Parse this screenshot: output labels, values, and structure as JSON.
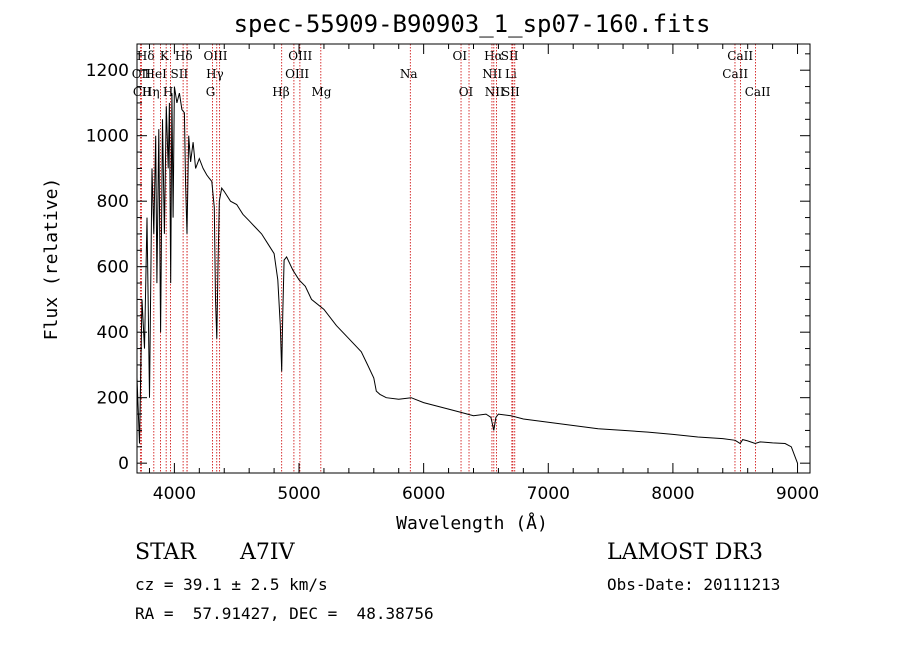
{
  "chart_data": {
    "type": "line",
    "title": "spec-55909-B90903_1_sp07-160.fits",
    "xlabel": "Wavelength (Å)",
    "ylabel": "Flux (relative)",
    "xlim": [
      3700,
      9100
    ],
    "ylim": [
      -30,
      1280
    ],
    "x_ticks": [
      4000,
      5000,
      6000,
      7000,
      8000,
      9000
    ],
    "y_ticks": [
      0,
      200,
      400,
      600,
      800,
      1000,
      1200
    ],
    "grid": false,
    "series": [
      {
        "name": "spectrum",
        "x": [
          3700,
          3720,
          3740,
          3760,
          3780,
          3800,
          3820,
          3835,
          3850,
          3860,
          3875,
          3889,
          3905,
          3920,
          3935,
          3950,
          3960,
          3970,
          3980,
          3990,
          4000,
          4020,
          4040,
          4060,
          4080,
          4090,
          4101,
          4115,
          4130,
          4150,
          4170,
          4200,
          4230,
          4260,
          4280,
          4300,
          4320,
          4330,
          4340,
          4350,
          4360,
          4380,
          4400,
          4450,
          4500,
          4550,
          4600,
          4650,
          4700,
          4750,
          4800,
          4830,
          4850,
          4861,
          4870,
          4880,
          4900,
          4950,
          5000,
          5050,
          5100,
          5200,
          5300,
          5400,
          5500,
          5550,
          5600,
          5620,
          5650,
          5700,
          5800,
          5900,
          6000,
          6100,
          6200,
          6300,
          6400,
          6500,
          6540,
          6563,
          6580,
          6600,
          6700,
          6800,
          7000,
          7200,
          7400,
          7600,
          7800,
          8000,
          8200,
          8400,
          8500,
          8540,
          8560,
          8600,
          8660,
          8700,
          8800,
          8900,
          8950,
          9000
        ],
        "y": [
          260,
          60,
          500,
          350,
          750,
          200,
          900,
          700,
          1000,
          550,
          1020,
          400,
          1050,
          700,
          1090,
          900,
          1100,
          550,
          1130,
          750,
          1150,
          1100,
          1130,
          1080,
          1070,
          850,
          700,
          1000,
          920,
          980,
          900,
          930,
          900,
          880,
          870,
          860,
          780,
          500,
          380,
          600,
          800,
          840,
          830,
          800,
          790,
          760,
          740,
          720,
          700,
          670,
          640,
          560,
          420,
          280,
          460,
          620,
          630,
          590,
          560,
          540,
          500,
          470,
          420,
          380,
          340,
          300,
          260,
          220,
          210,
          200,
          195,
          200,
          185,
          175,
          165,
          155,
          145,
          150,
          140,
          100,
          140,
          150,
          145,
          135,
          125,
          115,
          105,
          100,
          95,
          88,
          80,
          75,
          70,
          60,
          72,
          68,
          60,
          65,
          62,
          60,
          50,
          0
        ]
      }
    ],
    "lines": [
      {
        "label": "Hδ",
        "wave": 4102,
        "row": 0,
        "label_wave": 3770
      },
      {
        "label": "OII",
        "wave": 3727,
        "row": 1,
        "label_wave": 3735
      },
      {
        "label": "CII",
        "wave": 3735,
        "row": 2,
        "label_wave": 3742
      },
      {
        "label": "HeI",
        "wave": 3889,
        "row": 1,
        "label_wave": 3850
      },
      {
        "label": "Hη",
        "wave": 3835,
        "row": 2,
        "label_wave": 3810
      },
      {
        "label": "K",
        "wave": 3934,
        "row": 0,
        "label_wave": 3920
      },
      {
        "label": "SII",
        "wave": 4070,
        "row": 1,
        "label_wave": 4040
      },
      {
        "label": "H",
        "wave": 3969,
        "row": 2,
        "label_wave": 3950
      },
      {
        "label": "Hδ",
        "wave": 4102,
        "row": 0,
        "label_wave": 4075
      },
      {
        "label": "OIII",
        "wave": 4363,
        "row": 0,
        "label_wave": 4330
      },
      {
        "label": "Hγ",
        "wave": 4340,
        "row": 1,
        "label_wave": 4325
      },
      {
        "label": "G",
        "wave": 4305,
        "row": 2,
        "label_wave": 4290
      },
      {
        "label": "Hβ",
        "wave": 4861,
        "row": 2,
        "label_wave": 4855
      },
      {
        "label": "OIII",
        "wave": 5007,
        "row": 0,
        "label_wave": 5010
      },
      {
        "label": "OIII",
        "wave": 4959,
        "row": 1,
        "label_wave": 4985
      },
      {
        "label": "Mg",
        "wave": 5175,
        "row": 2,
        "label_wave": 5180
      },
      {
        "label": "Na",
        "wave": 5893,
        "row": 1,
        "label_wave": 5880
      },
      {
        "label": "OI",
        "wave": 6300,
        "row": 0,
        "label_wave": 6290
      },
      {
        "label": "OI",
        "wave": 6364,
        "row": 2,
        "label_wave": 6340
      },
      {
        "label": "Hα",
        "wave": 6563,
        "row": 0,
        "label_wave": 6560
      },
      {
        "label": "SII",
        "wave": 6716,
        "row": 0,
        "label_wave": 6690
      },
      {
        "label": "NII",
        "wave": 6548,
        "row": 1,
        "label_wave": 6550
      },
      {
        "label": "Li",
        "wave": 6708,
        "row": 1,
        "label_wave": 6700
      },
      {
        "label": "NII",
        "wave": 6584,
        "row": 2,
        "label_wave": 6570
      },
      {
        "label": "SII",
        "wave": 6731,
        "row": 2,
        "label_wave": 6700
      },
      {
        "label": "CaII",
        "wave": 8498,
        "row": 0,
        "label_wave": 8540
      },
      {
        "label": "CaII",
        "wave": 8542,
        "row": 1,
        "label_wave": 8500
      },
      {
        "label": "CaII",
        "wave": 8662,
        "row": 2,
        "label_wave": 8680
      }
    ]
  },
  "info": {
    "object_type": "STAR",
    "subclass": "A7IV",
    "survey": "LAMOST DR3",
    "cz": "cz = 39.1 ± 2.5 km/s",
    "obs_date": "Obs-Date: 20111213",
    "coords": "RA =  57.91427, DEC =  48.38756"
  },
  "colors": {
    "spectrum": "#000000",
    "line_marker": "#cc0000"
  }
}
